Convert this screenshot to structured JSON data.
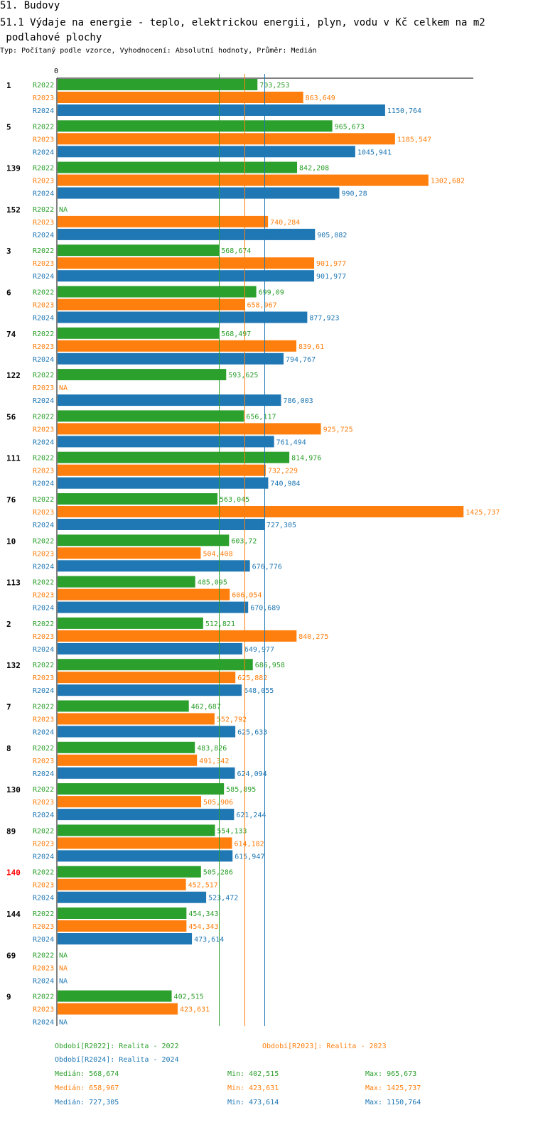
{
  "header": {
    "section": "51. Budovy",
    "title_line1": "51.1 Výdaje na energie - teplo, elektrickou energii, plyn, vodu v Kč celkem na m2",
    "title_line2": " podlahové plochy",
    "subtitle": "Typ: Počítaný podle vzorce, Vyhodnocení: Absolutní hodnoty, Průměr: Medián"
  },
  "chart_data": {
    "type": "bar",
    "orientation": "horizontal",
    "axis_zero_label": "0",
    "na_label": "NA",
    "colors": {
      "R2022": "#2ca02c",
      "R2023": "#ff7f0e",
      "R2024": "#1f77b4"
    },
    "highlight_color": "#ff0000",
    "series_names": [
      "R2022",
      "R2023",
      "R2024"
    ],
    "groups": [
      {
        "id": "1",
        "highlight": false,
        "values": [
          703.253,
          863.649,
          1150.764
        ]
      },
      {
        "id": "5",
        "highlight": false,
        "values": [
          965.673,
          1185.547,
          1045.941
        ]
      },
      {
        "id": "139",
        "highlight": false,
        "values": [
          842.208,
          1302.682,
          990.28
        ]
      },
      {
        "id": "152",
        "highlight": false,
        "values": [
          null,
          740.284,
          905.082
        ]
      },
      {
        "id": "3",
        "highlight": false,
        "values": [
          568.674,
          901.977,
          901.977
        ]
      },
      {
        "id": "6",
        "highlight": false,
        "values": [
          699.09,
          658.967,
          877.923
        ]
      },
      {
        "id": "74",
        "highlight": false,
        "values": [
          568.497,
          839.61,
          794.767
        ]
      },
      {
        "id": "122",
        "highlight": false,
        "values": [
          593.625,
          null,
          786.003
        ]
      },
      {
        "id": "56",
        "highlight": false,
        "values": [
          656.117,
          925.725,
          761.494
        ]
      },
      {
        "id": "111",
        "highlight": false,
        "values": [
          814.976,
          732.229,
          740.984
        ]
      },
      {
        "id": "76",
        "highlight": false,
        "values": [
          563.045,
          1425.737,
          727.305
        ]
      },
      {
        "id": "10",
        "highlight": false,
        "values": [
          603.72,
          504.408,
          676.776
        ]
      },
      {
        "id": "113",
        "highlight": false,
        "values": [
          485.095,
          606.054,
          670.689
        ]
      },
      {
        "id": "2",
        "highlight": false,
        "values": [
          512.821,
          840.275,
          649.977
        ]
      },
      {
        "id": "132",
        "highlight": false,
        "values": [
          686.958,
          625.882,
          648.055
        ]
      },
      {
        "id": "7",
        "highlight": false,
        "values": [
          462.687,
          552.792,
          625.633
        ]
      },
      {
        "id": "8",
        "highlight": false,
        "values": [
          483.826,
          491.342,
          624.094
        ]
      },
      {
        "id": "130",
        "highlight": false,
        "values": [
          585.895,
          505.906,
          621.244
        ]
      },
      {
        "id": "89",
        "highlight": false,
        "values": [
          554.133,
          614.182,
          615.947
        ]
      },
      {
        "id": "140",
        "highlight": true,
        "values": [
          505.286,
          452.517,
          523.472
        ]
      },
      {
        "id": "144",
        "highlight": false,
        "values": [
          454.343,
          454.343,
          473.614
        ]
      },
      {
        "id": "69",
        "highlight": false,
        "values": [
          null,
          null,
          null
        ]
      },
      {
        "id": "9",
        "highlight": false,
        "values": [
          402.515,
          423.631,
          null
        ]
      }
    ],
    "xlim": [
      0,
      1450
    ],
    "median_lines": [
      568.674,
      658.967,
      727.305
    ]
  },
  "legend": {
    "period_r2022": "Období[R2022]: Realita - 2022",
    "period_r2023": "Období[R2023]: Realita - 2023",
    "period_r2024": "Období[R2024]: Realita - 2024",
    "stats": [
      {
        "median": "Medián: 568,674",
        "min": "Min: 402,515",
        "max": "Max: 965,673"
      },
      {
        "median": "Medián: 658,967",
        "min": "Min: 423,631",
        "max": "Max: 1425,737"
      },
      {
        "median": "Medián: 727,305",
        "min": "Min: 473,614",
        "max": "Max: 1150,764"
      }
    ]
  }
}
